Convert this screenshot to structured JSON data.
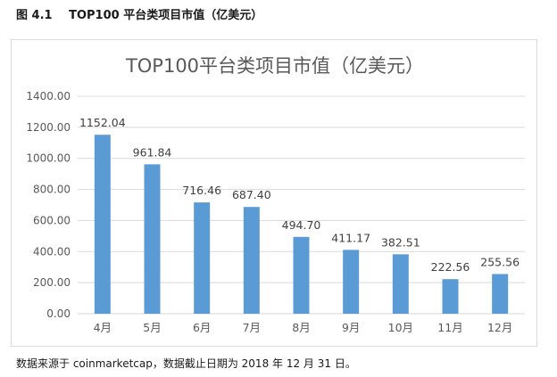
{
  "figure": {
    "number": "图 4.1",
    "caption": "TOP100 平台类项目市值（亿美元）"
  },
  "source_note": "数据来源于 coinmarketcap，数据截止日期为 2018 年 12 月 31 日。",
  "chart_data": {
    "type": "bar",
    "title": "TOP100平台类项目市值（亿美元）",
    "xlabel": "",
    "ylabel": "",
    "categories": [
      "4月",
      "5月",
      "6月",
      "7月",
      "8月",
      "9月",
      "10月",
      "11月",
      "12月"
    ],
    "values": [
      1152.04,
      961.84,
      716.46,
      687.4,
      494.7,
      411.17,
      382.51,
      222.56,
      255.56
    ],
    "data_labels": [
      "1152.04",
      "961.84",
      "716.46",
      "687.40",
      "494.70",
      "411.17",
      "382.51",
      "222.56",
      "255.56"
    ],
    "yticks": [
      "0.00",
      "200.00",
      "400.00",
      "600.00",
      "800.00",
      "1000.00",
      "1200.00",
      "1400.00"
    ],
    "ylim": [
      0,
      1400
    ],
    "grid": true,
    "legend": "none",
    "bar_color": "#5b9bd5",
    "grid_color": "#d9d9d9"
  }
}
